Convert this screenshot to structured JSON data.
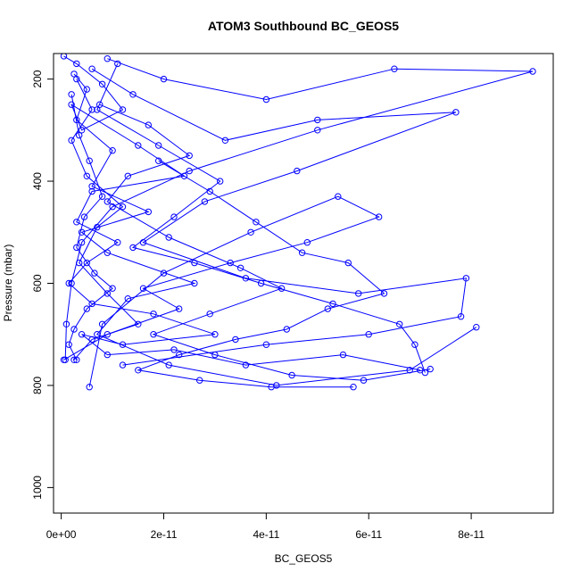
{
  "chart_data": {
    "type": "line",
    "title": "ATOM3 Southbound BC_GEOS5",
    "xlabel": "BC_GEOS5",
    "ylabel": "Pressure (mbar)",
    "xlim": [
      -1.5e-12,
      9.6e-11
    ],
    "ylim": [
      1050,
      150
    ],
    "y_reversed": true,
    "x_ticks": [
      0,
      2e-11,
      4e-11,
      6e-11,
      8e-11
    ],
    "x_tick_labels": [
      "0e+00",
      "2e-11",
      "4e-11",
      "6e-11",
      "8e-11"
    ],
    "y_ticks": [
      200,
      400,
      600,
      800,
      1000
    ],
    "y_tick_labels": [
      "200",
      "400",
      "600",
      "800",
      "1000"
    ],
    "grid": false,
    "color": "#0000ff",
    "marker": "open-circle",
    "series": [
      {
        "x": [
          5e-13,
          3e-12,
          8e-12,
          1.2e-11,
          4e-12,
          2e-12,
          1.5e-11,
          2.4e-11,
          6e-12,
          3e-12,
          1.1e-11,
          5e-12,
          1.5e-12,
          6e-12,
          1.8e-11,
          3e-11,
          1.2e-11,
          4e-12,
          9e-12,
          2.2e-11,
          3.6e-11,
          5.5e-11,
          7e-11
        ],
        "y": [
          155,
          170,
          210,
          260,
          300,
          250,
          330,
          390,
          420,
          480,
          520,
          560,
          600,
          640,
          660,
          700,
          720,
          700,
          740,
          730,
          760,
          740,
          770
        ]
      },
      {
        "x": [
          2.5e-12,
          5e-12,
          3e-12,
          1e-11,
          6e-12,
          1.7e-11,
          4e-12,
          9e-12,
          2.6e-11,
          1.3e-11,
          7e-12,
          2.1e-11,
          4.2e-11,
          6.8e-11,
          8.1e-11
        ],
        "y": [
          190,
          220,
          280,
          340,
          410,
          460,
          500,
          540,
          600,
          630,
          700,
          760,
          800,
          770,
          686
        ]
      },
      {
        "x": [
          9e-12,
          2e-11,
          4e-11,
          6.5e-11,
          9.2e-11,
          5e-11,
          2.5e-11,
          1e-11,
          4e-12,
          2e-12,
          1e-12,
          8e-13
        ],
        "y": [
          160,
          200,
          240,
          180,
          185,
          300,
          380,
          450,
          520,
          600,
          680,
          750
        ]
      },
      {
        "x": [
          6e-12,
          1.4e-11,
          3.2e-11,
          5e-11,
          7.7e-11,
          4.6e-11,
          2.8e-11,
          1.6e-11,
          3.6e-11,
          5.8e-11,
          7.9e-11,
          7.8e-11,
          6e-11,
          4e-11,
          1.2e-11
        ],
        "y": [
          180,
          230,
          320,
          280,
          265,
          380,
          440,
          520,
          590,
          620,
          590,
          665,
          700,
          720,
          760
        ]
      },
      {
        "x": [
          2e-12,
          3.5e-12,
          5.5e-12,
          8e-12,
          4.5e-12,
          3e-12,
          6.5e-12,
          1e-11,
          5e-12,
          2.5e-12,
          1.5e-12,
          3e-12
        ],
        "y": [
          230,
          310,
          360,
          430,
          470,
          530,
          580,
          610,
          650,
          690,
          720,
          750
        ]
      },
      {
        "x": [
          1.9e-11,
          2.9e-11,
          3.8e-11,
          4.7e-11,
          5.6e-11,
          6.3e-11,
          5.2e-11,
          4.4e-11,
          3.4e-11,
          2.3e-11,
          1.5e-11,
          2.7e-11,
          4.1e-11,
          5.7e-11
        ],
        "y": [
          360,
          420,
          480,
          540,
          560,
          620,
          650,
          690,
          710,
          740,
          770,
          790,
          803,
          803
        ]
      },
      {
        "x": [
          1.1e-11,
          7e-12,
          1.9e-11,
          3.1e-11,
          2.2e-11,
          1.4e-11,
          2.6e-11,
          3.9e-11,
          5.3e-11,
          6.6e-11,
          6.9e-11,
          7.1e-11
        ],
        "y": [
          170,
          260,
          330,
          400,
          470,
          530,
          560,
          600,
          640,
          680,
          720,
          775
        ]
      },
      {
        "x": [
          5e-13,
          9e-12,
          2.3e-11,
          1.6e-11,
          3.3e-11,
          4.8e-11,
          6.2e-11,
          5.4e-11,
          3.7e-11,
          2e-11,
          8e-12,
          5.5e-12
        ],
        "y": [
          750,
          700,
          650,
          610,
          560,
          520,
          470,
          430,
          500,
          580,
          680,
          803
        ]
      },
      {
        "x": [
          7.5e-12,
          1.7e-11,
          2.5e-11,
          1.3e-11,
          9e-12,
          2.1e-11,
          3.5e-11,
          4.3e-11,
          2.9e-11,
          1.8e-11,
          3e-11,
          4.5e-11,
          5.9e-11,
          7.2e-11
        ],
        "y": [
          250,
          290,
          350,
          390,
          440,
          510,
          570,
          610,
          660,
          700,
          740,
          780,
          790,
          768
        ]
      },
      {
        "x": [
          3e-12,
          6e-12,
          2e-12,
          5e-12,
          1.2e-11,
          7e-12,
          3.5e-12,
          9e-12,
          1.5e-11,
          6e-12,
          2.5e-12
        ],
        "y": [
          200,
          260,
          320,
          390,
          450,
          490,
          560,
          620,
          680,
          710,
          750
        ]
      }
    ]
  }
}
